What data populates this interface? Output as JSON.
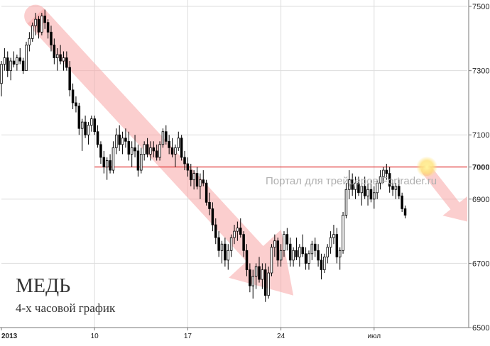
{
  "chart_data": {
    "type": "candlestick",
    "title": "МЕДЬ",
    "subtitle": "4-х часовой график",
    "watermark": "Портал для трейдеров Fortrader.ru",
    "ylim": [
      6500,
      7520
    ],
    "y_ticks": [
      {
        "value": 7500,
        "label": "7500",
        "bold": false
      },
      {
        "value": 7300,
        "label": "7300",
        "bold": false
      },
      {
        "value": 7100,
        "label": "7100",
        "bold": false
      },
      {
        "value": 7000,
        "label": "7000",
        "bold": true
      },
      {
        "value": 6900,
        "label": "6900",
        "bold": false
      },
      {
        "value": 6700,
        "label": "6700",
        "bold": false
      },
      {
        "value": 6500,
        "label": "6500",
        "bold": false
      }
    ],
    "x_ticks": [
      {
        "index": 0,
        "label": "2013",
        "bold": true
      },
      {
        "index": 30,
        "label": "10",
        "bold": false
      },
      {
        "index": 60,
        "label": "17",
        "bold": false
      },
      {
        "index": 90,
        "label": "24",
        "bold": false
      },
      {
        "index": 120,
        "label": "июл",
        "bold": false
      }
    ],
    "x_range": [
      0,
      150
    ],
    "support_level": 7000,
    "trend_arrows": [
      {
        "from": [
          11,
          7470
        ],
        "to": [
          94,
          6600
        ]
      },
      {
        "from": [
          137,
          6990
        ],
        "to": [
          150,
          6830
        ]
      }
    ],
    "highlight_point": [
      137,
      7000
    ],
    "candles": [
      [
        7260,
        7330,
        7220,
        7320
      ],
      [
        7320,
        7370,
        7300,
        7340
      ],
      [
        7340,
        7360,
        7280,
        7300
      ],
      [
        7300,
        7340,
        7270,
        7330
      ],
      [
        7330,
        7360,
        7310,
        7320
      ],
      [
        7320,
        7350,
        7300,
        7340
      ],
      [
        7340,
        7370,
        7320,
        7330
      ],
      [
        7330,
        7340,
        7290,
        7300
      ],
      [
        7300,
        7390,
        7300,
        7380
      ],
      [
        7380,
        7420,
        7360,
        7400
      ],
      [
        7400,
        7450,
        7390,
        7440
      ],
      [
        7440,
        7480,
        7410,
        7460
      ],
      [
        7460,
        7470,
        7400,
        7420
      ],
      [
        7420,
        7480,
        7410,
        7470
      ],
      [
        7470,
        7490,
        7430,
        7450
      ],
      [
        7450,
        7460,
        7400,
        7420
      ],
      [
        7420,
        7440,
        7360,
        7380
      ],
      [
        7380,
        7400,
        7320,
        7340
      ],
      [
        7340,
        7370,
        7300,
        7350
      ],
      [
        7350,
        7380,
        7320,
        7330
      ],
      [
        7330,
        7360,
        7300,
        7340
      ],
      [
        7340,
        7360,
        7300,
        7310
      ],
      [
        7310,
        7330,
        7220,
        7240
      ],
      [
        7240,
        7260,
        7180,
        7200
      ],
      [
        7200,
        7220,
        7170,
        7190
      ],
      [
        7190,
        7200,
        7100,
        7120
      ],
      [
        7120,
        7150,
        7050,
        7140
      ],
      [
        7140,
        7160,
        7090,
        7100
      ],
      [
        7100,
        7140,
        7070,
        7130
      ],
      [
        7130,
        7160,
        7110,
        7150
      ],
      [
        7150,
        7160,
        7100,
        7110
      ],
      [
        7110,
        7130,
        7060,
        7070
      ],
      [
        7070,
        7080,
        7010,
        7030
      ],
      [
        7030,
        7050,
        6980,
        7000
      ],
      [
        7000,
        7030,
        6960,
        7020
      ],
      [
        7020,
        7040,
        6980,
        6990
      ],
      [
        6990,
        7080,
        6980,
        7060
      ],
      [
        7060,
        7120,
        7040,
        7100
      ],
      [
        7100,
        7130,
        7050,
        7070
      ],
      [
        7070,
        7110,
        7040,
        7090
      ],
      [
        7090,
        7120,
        7060,
        7080
      ],
      [
        7080,
        7110,
        7020,
        7040
      ],
      [
        7040,
        7080,
        7000,
        7060
      ],
      [
        7060,
        7100,
        7030,
        7050
      ],
      [
        7050,
        7070,
        6970,
        6990
      ],
      [
        6990,
        7060,
        6980,
        7040
      ],
      [
        7040,
        7080,
        7020,
        7070
      ],
      [
        7070,
        7090,
        7030,
        7040
      ],
      [
        7040,
        7080,
        7020,
        7060
      ],
      [
        7060,
        7080,
        7030,
        7050
      ],
      [
        7050,
        7070,
        7020,
        7030
      ],
      [
        7030,
        7080,
        7020,
        7070
      ],
      [
        7070,
        7120,
        7060,
        7110
      ],
      [
        7110,
        7130,
        7070,
        7080
      ],
      [
        7080,
        7100,
        7040,
        7060
      ],
      [
        7060,
        7090,
        7030,
        7040
      ],
      [
        7040,
        7070,
        7000,
        7060
      ],
      [
        7060,
        7110,
        7050,
        7090
      ],
      [
        7090,
        7100,
        7020,
        7030
      ],
      [
        7030,
        7050,
        6990,
        7010
      ],
      [
        7010,
        7030,
        6970,
        6990
      ],
      [
        6990,
        7010,
        6940,
        6960
      ],
      [
        6960,
        6990,
        6930,
        6980
      ],
      [
        6980,
        7000,
        6930,
        6940
      ],
      [
        6940,
        6980,
        6900,
        6960
      ],
      [
        6960,
        6990,
        6940,
        6950
      ],
      [
        6950,
        6960,
        6880,
        6890
      ],
      [
        6890,
        6920,
        6850,
        6870
      ],
      [
        6870,
        6890,
        6800,
        6820
      ],
      [
        6820,
        6840,
        6760,
        6780
      ],
      [
        6780,
        6800,
        6720,
        6740
      ],
      [
        6740,
        6770,
        6700,
        6760
      ],
      [
        6760,
        6780,
        6690,
        6710
      ],
      [
        6710,
        6760,
        6680,
        6740
      ],
      [
        6740,
        6790,
        6720,
        6780
      ],
      [
        6780,
        6820,
        6760,
        6800
      ],
      [
        6800,
        6830,
        6770,
        6810
      ],
      [
        6810,
        6840,
        6780,
        6790
      ],
      [
        6790,
        6800,
        6720,
        6740
      ],
      [
        6740,
        6760,
        6660,
        6680
      ],
      [
        6680,
        6700,
        6610,
        6630
      ],
      [
        6630,
        6680,
        6590,
        6660
      ],
      [
        6660,
        6700,
        6620,
        6690
      ],
      [
        6690,
        6720,
        6640,
        6650
      ],
      [
        6650,
        6700,
        6620,
        6680
      ],
      [
        6680,
        6700,
        6580,
        6600
      ],
      [
        6600,
        6690,
        6590,
        6670
      ],
      [
        6670,
        6760,
        6660,
        6750
      ],
      [
        6750,
        6790,
        6720,
        6770
      ],
      [
        6770,
        6780,
        6690,
        6710
      ],
      [
        6710,
        6760,
        6690,
        6740
      ],
      [
        6740,
        6800,
        6720,
        6790
      ],
      [
        6790,
        6810,
        6740,
        6760
      ],
      [
        6760,
        6780,
        6690,
        6710
      ],
      [
        6710,
        6750,
        6690,
        6740
      ],
      [
        6740,
        6780,
        6710,
        6720
      ],
      [
        6720,
        6760,
        6690,
        6750
      ],
      [
        6750,
        6790,
        6720,
        6730
      ],
      [
        6730,
        6750,
        6680,
        6700
      ],
      [
        6700,
        6740,
        6680,
        6730
      ],
      [
        6730,
        6770,
        6710,
        6760
      ],
      [
        6760,
        6780,
        6720,
        6740
      ],
      [
        6740,
        6760,
        6690,
        6710
      ],
      [
        6710,
        6730,
        6650,
        6680
      ],
      [
        6680,
        6730,
        6670,
        6720
      ],
      [
        6720,
        6760,
        6700,
        6750
      ],
      [
        6750,
        6800,
        6730,
        6780
      ],
      [
        6780,
        6820,
        6760,
        6790
      ],
      [
        6790,
        6810,
        6700,
        6720
      ],
      [
        6720,
        6750,
        6680,
        6740
      ],
      [
        6740,
        6860,
        6730,
        6850
      ],
      [
        6850,
        6950,
        6840,
        6930
      ],
      [
        6930,
        6990,
        6900,
        6960
      ],
      [
        6960,
        6980,
        6910,
        6930
      ],
      [
        6930,
        6970,
        6900,
        6950
      ],
      [
        6950,
        6970,
        6910,
        6920
      ],
      [
        6920,
        6950,
        6880,
        6940
      ],
      [
        6940,
        6970,
        6900,
        6910
      ],
      [
        6910,
        6950,
        6880,
        6930
      ],
      [
        6930,
        6960,
        6890,
        6900
      ],
      [
        6900,
        6940,
        6870,
        6920
      ],
      [
        6920,
        6960,
        6900,
        6950
      ],
      [
        6950,
        6990,
        6930,
        6970
      ],
      [
        6970,
        7000,
        6950,
        6990
      ],
      [
        6990,
        7010,
        6960,
        6980
      ],
      [
        6980,
        7000,
        6920,
        6940
      ],
      [
        6940,
        6960,
        6910,
        6930
      ],
      [
        6930,
        6950,
        6900,
        6940
      ],
      [
        6940,
        6960,
        6900,
        6910
      ],
      [
        6910,
        6920,
        6860,
        6870
      ],
      [
        6870,
        6880,
        6840,
        6850
      ]
    ]
  }
}
